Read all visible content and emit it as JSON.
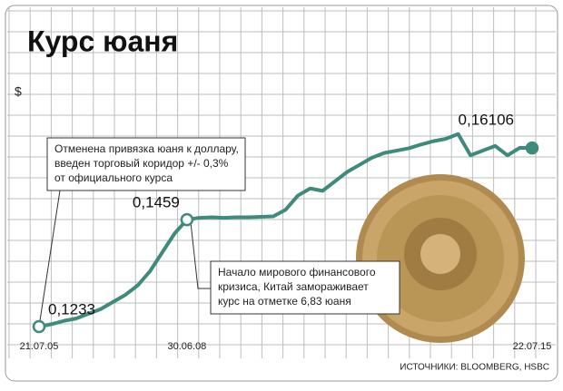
{
  "chart_data": {
    "type": "line",
    "title": "Курс юаня",
    "y_label": "$",
    "categories": [
      "21.07.05",
      null,
      null,
      null,
      null,
      null,
      null,
      null,
      null,
      null,
      null,
      null,
      "30.06.08",
      null,
      null,
      null,
      null,
      null,
      null,
      null,
      null,
      null,
      null,
      null,
      null,
      null,
      null,
      null,
      null,
      null,
      null,
      null,
      null,
      null,
      null,
      null,
      null,
      null,
      null,
      null,
      "22.07.15"
    ],
    "series": [
      {
        "color": "#3e8b7c",
        "values": [
          0.1233,
          0.1238,
          0.1245,
          0.125,
          0.126,
          0.127,
          0.1285,
          0.13,
          0.132,
          0.135,
          0.139,
          0.143,
          0.1459,
          0.1463,
          0.1464,
          0.1463,
          0.1464,
          0.1464,
          0.1465,
          0.1466,
          0.148,
          0.151,
          0.1525,
          0.152,
          0.154,
          0.156,
          0.1575,
          0.159,
          0.16,
          0.1605,
          0.161,
          0.1618,
          0.1625,
          0.163,
          0.164,
          0.1595,
          0.1605,
          0.1615,
          0.1595,
          0.1611,
          0.16106
        ],
        "value_labels": [
          "0,1233",
          null,
          null,
          null,
          null,
          null,
          null,
          null,
          null,
          null,
          null,
          null,
          "0,1459",
          null,
          null,
          null,
          null,
          null,
          null,
          null,
          null,
          null,
          null,
          null,
          null,
          null,
          null,
          null,
          null,
          null,
          null,
          null,
          null,
          null,
          null,
          null,
          null,
          null,
          null,
          null,
          "0,16106"
        ]
      }
    ],
    "ylim": [
      0.121,
      0.177
    ],
    "grid": true,
    "annotations": [
      [
        "Отменена привязка юаня к доллару,",
        "введен торговый коридор +/- 0,3%",
        "от официального курса"
      ],
      [
        "Начало мирового финансового",
        "кризиса, Китай замораживает",
        "курс на отметке 6,83 юаня"
      ]
    ],
    "source": "ИСТОЧНИКИ: BLOOMBERG, HSBC"
  }
}
